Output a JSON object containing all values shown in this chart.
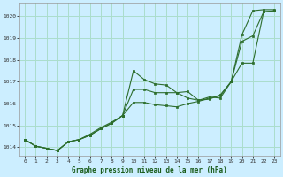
{
  "xlabel": "Graphe pression niveau de la mer (hPa)",
  "background_color": "#cceeff",
  "grid_color": "#aaddcc",
  "line_color": "#2d6e2d",
  "marker_color": "#2d6e2d",
  "ylim": [
    1013.6,
    1020.6
  ],
  "xlim": [
    -0.5,
    23.5
  ],
  "yticks": [
    1014,
    1015,
    1016,
    1017,
    1018,
    1019,
    1020
  ],
  "xticks": [
    0,
    1,
    2,
    3,
    4,
    5,
    6,
    7,
    8,
    9,
    10,
    11,
    12,
    13,
    14,
    15,
    16,
    17,
    18,
    19,
    20,
    21,
    22,
    23
  ],
  "series": [
    [
      1014.35,
      1014.05,
      1013.95,
      1013.85,
      1014.25,
      1014.35,
      1014.55,
      1014.85,
      1015.1,
      1015.45,
      1017.5,
      1017.1,
      1016.9,
      1016.85,
      1016.5,
      1016.25,
      1016.15,
      1016.3,
      1016.25,
      1017.0,
      1019.15,
      1020.25,
      1020.3,
      1020.3
    ],
    [
      1014.35,
      1014.05,
      1013.95,
      1013.85,
      1014.25,
      1014.35,
      1014.6,
      1014.9,
      1015.15,
      1015.45,
      1016.65,
      1016.65,
      1016.5,
      1016.5,
      1016.5,
      1016.55,
      1016.15,
      1016.2,
      1016.4,
      1017.0,
      1018.85,
      1019.1,
      1020.2,
      1020.25
    ],
    [
      1014.35,
      1014.05,
      1013.95,
      1013.85,
      1014.25,
      1014.35,
      1014.55,
      1014.85,
      1015.1,
      1015.45,
      1016.05,
      1016.05,
      1015.95,
      1015.9,
      1015.85,
      1016.0,
      1016.1,
      1016.25,
      1016.35,
      1017.0,
      1017.85,
      1017.85,
      1020.2,
      1020.25
    ]
  ]
}
